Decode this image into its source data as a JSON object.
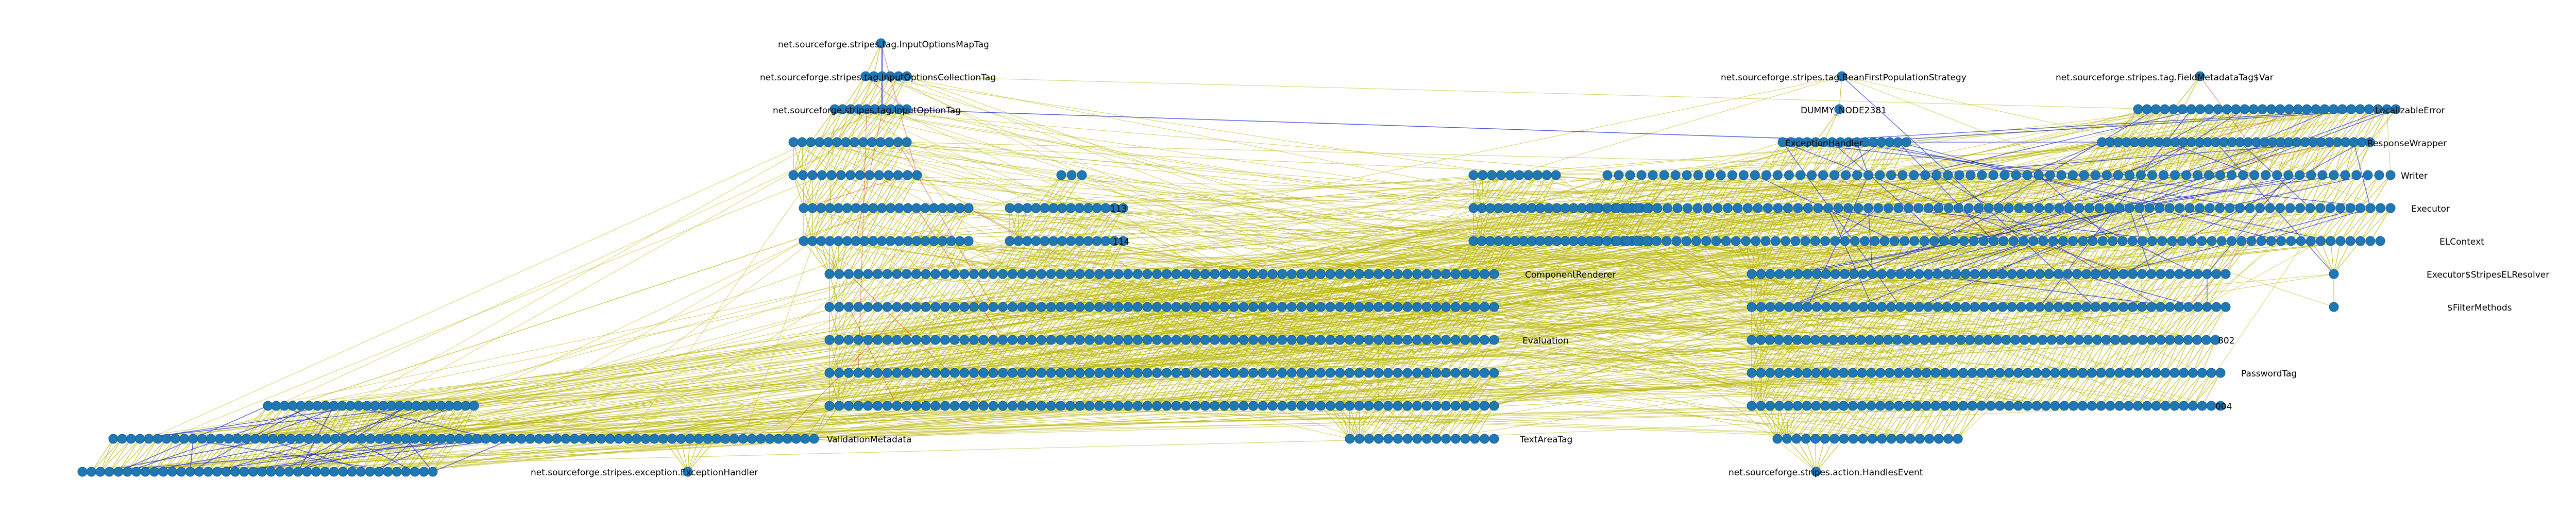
{
  "graph": {
    "node_color": "#1f77b4",
    "edge_color_main": "#b8b400",
    "edge_color_secondary": "#1f2fd0",
    "edge_color_accent": "#d04020",
    "labels": {
      "n_input_options_map_tag": "net.sourceforge.stripes.tag.InputOptionsMapTag",
      "n_input_options_collection_tag": "net.sourceforge.stripes.tag.InputOptionsCollectionTag",
      "n_input_option_tag": "net.sourceforge.stripes.tag.InputOptionTag",
      "n_bean_first_population_strategy": "net.sourceforge.stripes.tag.BeanFirstPopulationStrategy",
      "n_field_metadata_tag_var": "net.sourceforge.stripes.tag.FieldMetadataTag$Var",
      "n_dummy_node_2381": "DUMMY_NODE2381",
      "n_localizable_error": "LocalizableError",
      "n_exception_handler_short": "ExceptionHandler",
      "n_response_wrapper": "ResponseWrapper",
      "n_writer": "Writer",
      "n_executor": "Executor",
      "n_n113": "113",
      "n_n114": "114",
      "n_el_context": "ELContext",
      "n_component_renderer": "ComponentRenderer",
      "n_stripes_el_resolver": "Executor$StripesELResolver",
      "n_filter_methods": "$FilterMethods",
      "n_evaluation": "Evaluation",
      "n_n802": "802",
      "n_password_tag": "PasswordTag",
      "n_n004": "004",
      "n_validation_metadata": "ValidationMetadata",
      "n_text_area_tag": "TextAreaTag",
      "n_exception_handler": "net.sourceforge.stripes.exception.ExceptionHandler",
      "n_handles_event": "net.sourceforge.stripes.action.HandlesEvent"
    }
  }
}
